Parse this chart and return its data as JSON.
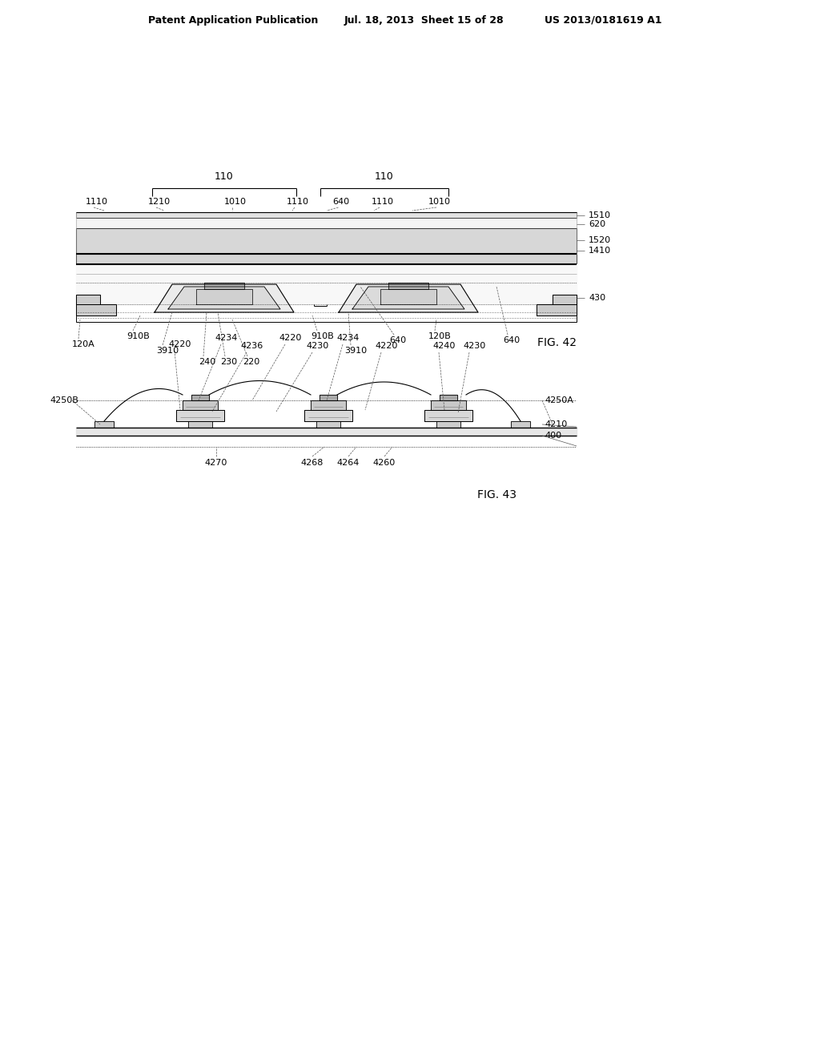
{
  "bg_color": "#ffffff",
  "text_color": "#000000",
  "line_color": "#000000",
  "header_left": "Patent Application Publication",
  "header_mid": "Jul. 18, 2013  Sheet 15 of 28",
  "header_right": "US 2013/0181619 A1",
  "fig42_label": "FIG. 42",
  "fig43_label": "FIG. 43"
}
